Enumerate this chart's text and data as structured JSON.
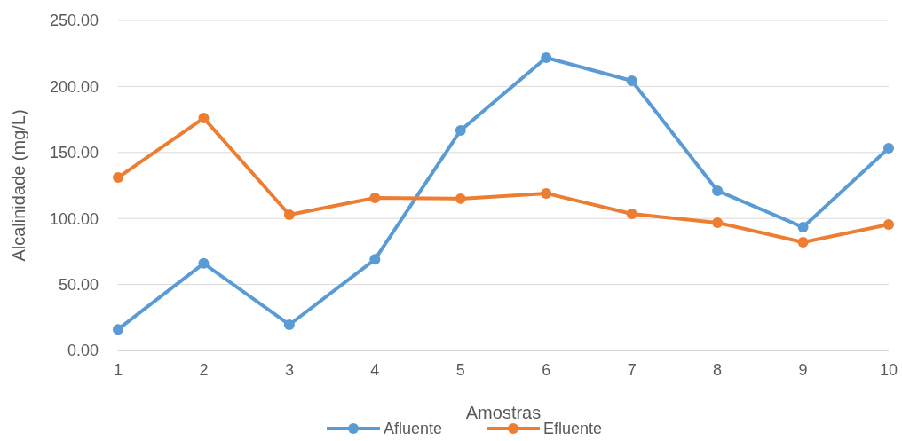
{
  "chart_data": {
    "type": "line",
    "xlabel": "Amostras",
    "ylabel": "Alcalinidade (mg/L)",
    "categories": [
      "1",
      "2",
      "3",
      "4",
      "5",
      "6",
      "7",
      "8",
      "9",
      "10"
    ],
    "series": [
      {
        "name": "Afluente",
        "color": "#5b9bd5",
        "values": [
          16,
          66,
          19.5,
          69,
          166.7,
          221.8,
          204.3,
          121,
          93.4,
          153.2
        ]
      },
      {
        "name": "Efluente",
        "color": "#ed7d31",
        "values": [
          131,
          176,
          102.8,
          115.6,
          115,
          119,
          103.5,
          96.8,
          82,
          95.4
        ]
      }
    ],
    "ylim": [
      0,
      250
    ],
    "yticks": [
      {
        "value": 0,
        "label": "0.00"
      },
      {
        "value": 50,
        "label": "50.00"
      },
      {
        "value": 100,
        "label": "100.00"
      },
      {
        "value": 150,
        "label": "150.00"
      },
      {
        "value": 200,
        "label": "200.00"
      },
      {
        "value": 250,
        "label": "250.00"
      }
    ],
    "grid": "y",
    "legend": "bottom",
    "marker": "circle",
    "line_style": "solid"
  }
}
